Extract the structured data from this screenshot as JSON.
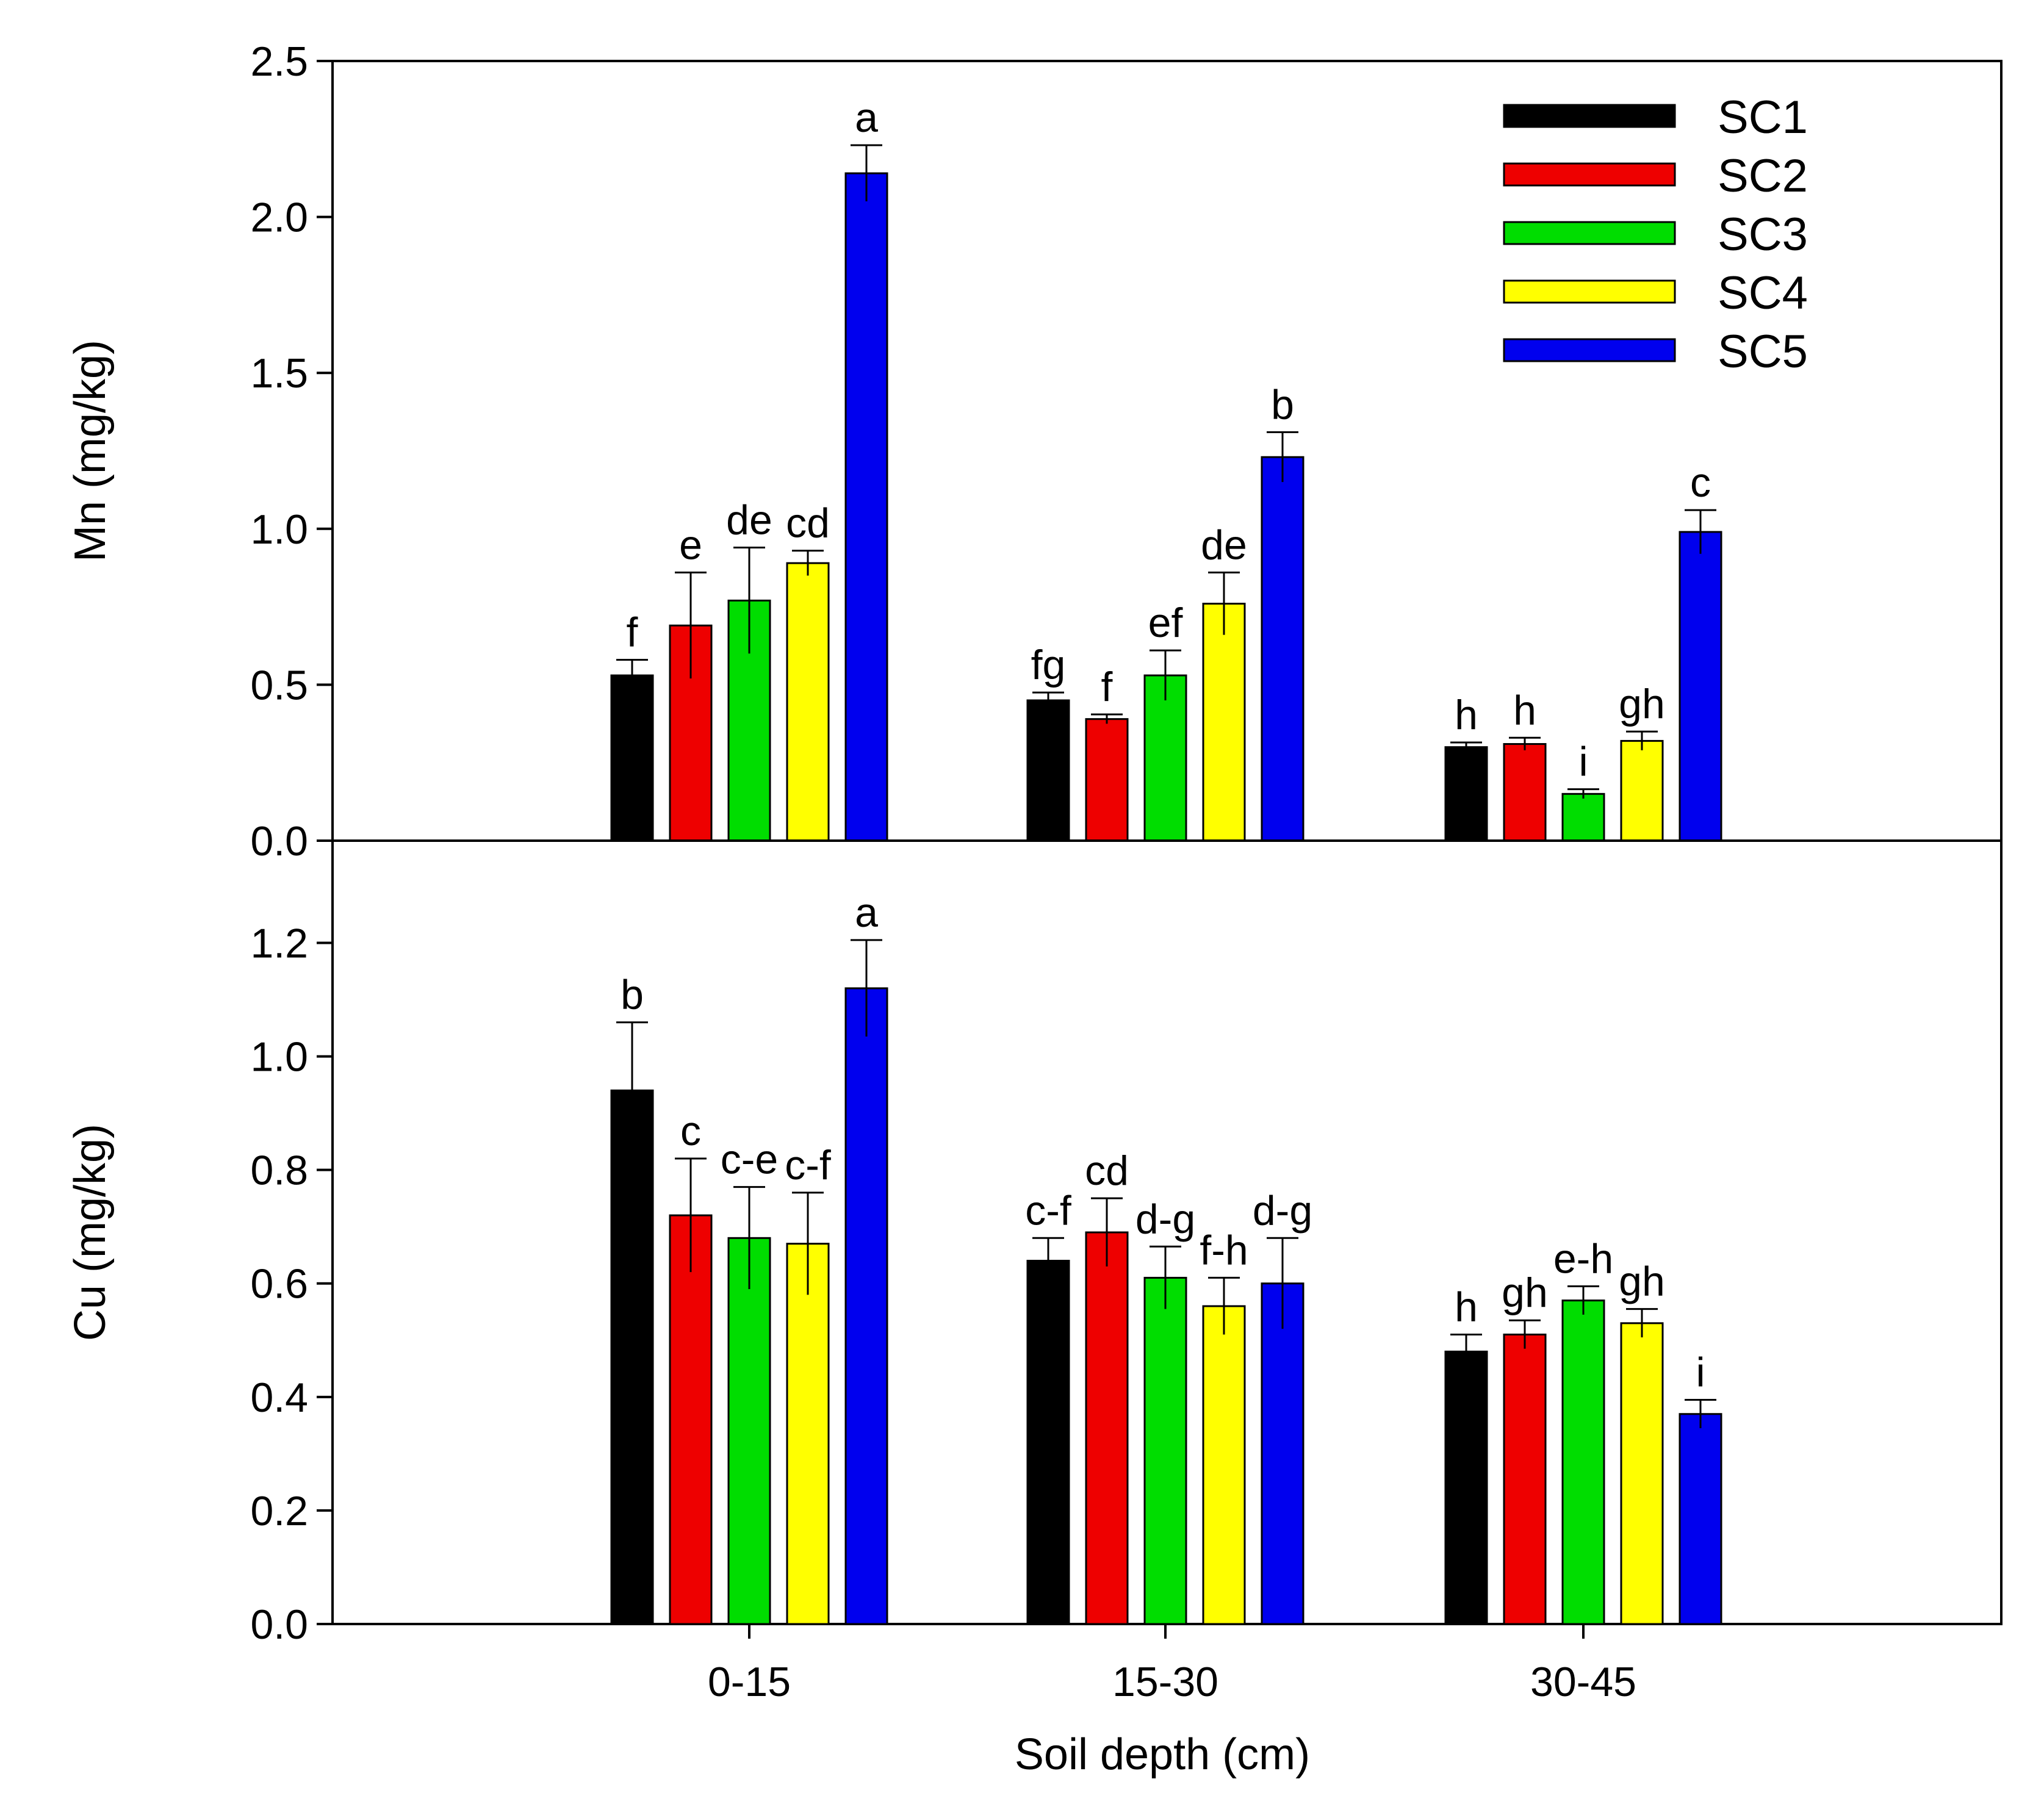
{
  "chart_data": [
    {
      "type": "bar",
      "panel": "top",
      "ylabel": "Mn (mg/kg)",
      "ylim": [
        0,
        2.5
      ],
      "yticks": [
        "0.0",
        "0.5",
        "1.0",
        "1.5",
        "2.0",
        "2.5"
      ],
      "ytick_values": [
        0,
        0.5,
        1.0,
        1.5,
        2.0,
        2.5
      ],
      "categories": [
        "0-15",
        "15-30",
        "30-45"
      ],
      "series": [
        {
          "name": "SC1",
          "color": "#000000",
          "values": [
            0.53,
            0.45,
            0.3
          ],
          "errors": [
            0.05,
            0.025,
            0.015
          ],
          "letters": [
            "f",
            "fg",
            "h"
          ]
        },
        {
          "name": "SC2",
          "color": "#ee0000",
          "values": [
            0.69,
            0.39,
            0.31
          ],
          "errors": [
            0.17,
            0.015,
            0.02
          ],
          "letters": [
            "e",
            "f",
            "h"
          ]
        },
        {
          "name": "SC3",
          "color": "#00dd00",
          "values": [
            0.77,
            0.53,
            0.15
          ],
          "errors": [
            0.17,
            0.08,
            0.015
          ],
          "letters": [
            "de",
            "ef",
            "i"
          ]
        },
        {
          "name": "SC4",
          "color": "#ffff00",
          "values": [
            0.89,
            0.76,
            0.32
          ],
          "errors": [
            0.04,
            0.1,
            0.03
          ],
          "letters": [
            "cd",
            "de",
            "gh"
          ]
        },
        {
          "name": "SC5",
          "color": "#0000ee",
          "values": [
            2.14,
            1.23,
            0.99
          ],
          "errors": [
            0.09,
            0.08,
            0.07
          ],
          "letters": [
            "a",
            "b",
            "c"
          ]
        }
      ],
      "legend": [
        "SC1",
        "SC2",
        "SC3",
        "SC4",
        "SC5"
      ],
      "legend_position": "top-right"
    },
    {
      "type": "bar",
      "panel": "bottom",
      "ylabel": "Cu (mg/kg)",
      "xlabel": "Soil depth (cm)",
      "ylim": [
        0,
        1.38
      ],
      "yticks": [
        "0.0",
        "0.2",
        "0.4",
        "0.6",
        "0.8",
        "1.0",
        "1.2"
      ],
      "ytick_values": [
        0,
        0.2,
        0.4,
        0.6,
        0.8,
        1.0,
        1.2
      ],
      "categories": [
        "0-15",
        "15-30",
        "30-45"
      ],
      "series": [
        {
          "name": "SC1",
          "color": "#000000",
          "values": [
            0.94,
            0.64,
            0.48
          ],
          "errors": [
            0.12,
            0.04,
            0.03
          ],
          "letters": [
            "b",
            "c-f",
            "h"
          ]
        },
        {
          "name": "SC2",
          "color": "#ee0000",
          "values": [
            0.72,
            0.69,
            0.51
          ],
          "errors": [
            0.1,
            0.06,
            0.025
          ],
          "letters": [
            "c",
            "cd",
            "gh"
          ]
        },
        {
          "name": "SC3",
          "color": "#00dd00",
          "values": [
            0.68,
            0.61,
            0.57
          ],
          "errors": [
            0.09,
            0.055,
            0.025
          ],
          "letters": [
            "c-e",
            "d-g",
            "e-h"
          ]
        },
        {
          "name": "SC4",
          "color": "#ffff00",
          "values": [
            0.67,
            0.56,
            0.53
          ],
          "errors": [
            0.09,
            0.05,
            0.025
          ],
          "letters": [
            "c-f",
            "f-h",
            "gh"
          ]
        },
        {
          "name": "SC5",
          "color": "#0000ee",
          "values": [
            1.12,
            0.6,
            0.37
          ],
          "errors": [
            0.085,
            0.08,
            0.025
          ],
          "letters": [
            "a",
            "d-g",
            "i"
          ]
        }
      ]
    }
  ]
}
